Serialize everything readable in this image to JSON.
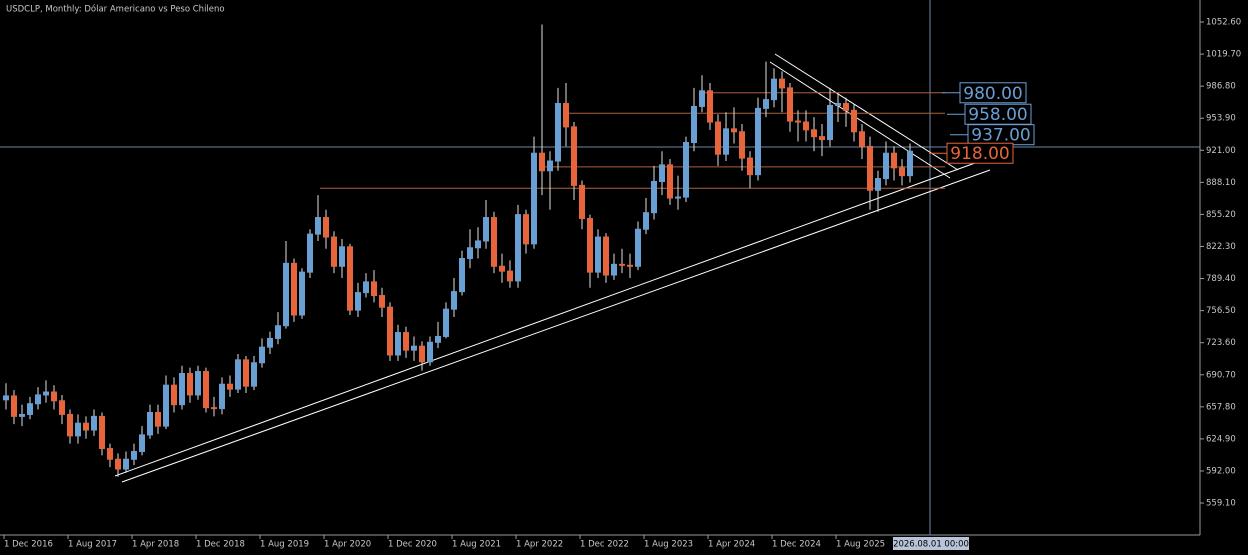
{
  "chart_data": {
    "type": "candlestick",
    "title": "USDCLP, Monthly:  Dólar Americano vs Peso Chileno",
    "categories": [
      "1 Dec 2016",
      null,
      null,
      null,
      null,
      null,
      null,
      null,
      "1 Aug 2017",
      null,
      null,
      null,
      null,
      null,
      null,
      null,
      "1 Apr 2018",
      null,
      null,
      null,
      null,
      null,
      null,
      null,
      "1 Dec 2018",
      null,
      null,
      null,
      null,
      null,
      null,
      null,
      "1 Aug 2019",
      null,
      null,
      null,
      null,
      null,
      null,
      null,
      "1 Apr 2020",
      null,
      null,
      null,
      null,
      null,
      null,
      null,
      "1 Dec 2020",
      null,
      null,
      null,
      null,
      null,
      null,
      null,
      "1 Aug 2021",
      null,
      null,
      null,
      null,
      null,
      null,
      null,
      "1 Apr 2022",
      null,
      null,
      null,
      null,
      null,
      null,
      null,
      "1 Dec 2022",
      null,
      null,
      null,
      null,
      null,
      null,
      null,
      "1 Aug 2023",
      null,
      null,
      null,
      null,
      null,
      null,
      null,
      "1 Apr 2024",
      null,
      null,
      null,
      null,
      null,
      null,
      null,
      "1 Dec 2024",
      null,
      null,
      null,
      null,
      null,
      null,
      null,
      "1 Aug 2025",
      null,
      null,
      null,
      null,
      null,
      null,
      null,
      null,
      null
    ],
    "open": [
      665,
      669,
      648,
      650,
      661,
      670,
      673,
      664,
      650,
      628,
      641,
      634,
      648,
      615,
      604,
      594,
      604,
      612,
      629,
      652,
      638,
      680,
      660,
      692,
      670,
      694,
      657,
      656,
      681,
      676,
      706,
      679,
      703,
      719,
      728,
      741,
      805,
      752,
      796,
      835,
      852,
      832,
      802,
      822,
      757,
      775,
      786,
      772,
      760,
      711,
      734,
      716,
      720,
      704,
      724,
      730,
      758,
      776,
      810,
      821,
      828,
      852,
      802,
      797,
      787,
      855,
      825,
      918,
      900,
      910,
      969,
      945,
      885,
      851,
      796,
      832,
      793,
      804,
      803,
      802,
      840,
      857,
      889,
      906,
      872,
      873,
      929,
      966,
      982,
      950,
      917,
      943,
      940,
      913,
      896,
      964,
      973,
      994,
      985,
      951,
      950,
      942,
      935,
      932,
      967,
      969,
      962,
      940,
      925,
      880,
      892,
      918,
      903,
      895
    ],
    "high": [
      682,
      675,
      660,
      668,
      678,
      685,
      680,
      670,
      655,
      650,
      648,
      655,
      652,
      620,
      610,
      612,
      620,
      638,
      660,
      660,
      690,
      688,
      700,
      698,
      700,
      698,
      668,
      688,
      690,
      712,
      710,
      710,
      728,
      735,
      755,
      828,
      810,
      800,
      840,
      875,
      860,
      838,
      830,
      825,
      785,
      795,
      798,
      780,
      765,
      742,
      740,
      730,
      725,
      730,
      745,
      765,
      790,
      818,
      840,
      842,
      870,
      858,
      815,
      808,
      865,
      860,
      935,
      1050,
      920,
      985,
      990,
      950,
      890,
      855,
      840,
      836,
      815,
      820,
      815,
      848,
      872,
      905,
      920,
      912,
      895,
      935,
      985,
      998,
      990,
      958,
      960,
      965,
      948,
      920,
      975,
      1012,
      1005,
      1002,
      990,
      962,
      962,
      955,
      948,
      985,
      980,
      975,
      968,
      948,
      935,
      900,
      930,
      925,
      912,
      928
    ],
    "low": [
      655,
      640,
      638,
      645,
      655,
      662,
      655,
      640,
      620,
      620,
      625,
      628,
      608,
      596,
      586,
      590,
      598,
      608,
      625,
      630,
      635,
      652,
      655,
      662,
      665,
      652,
      648,
      650,
      668,
      672,
      672,
      675,
      698,
      712,
      722,
      738,
      745,
      748,
      790,
      828,
      820,
      795,
      790,
      752,
      750,
      770,
      765,
      750,
      705,
      705,
      708,
      705,
      695,
      700,
      718,
      728,
      750,
      772,
      800,
      810,
      820,
      795,
      785,
      780,
      780,
      815,
      820,
      875,
      860,
      900,
      925,
      870,
      840,
      780,
      790,
      785,
      788,
      795,
      790,
      798,
      835,
      850,
      875,
      865,
      860,
      868,
      920,
      960,
      942,
      905,
      910,
      928,
      900,
      882,
      890,
      955,
      965,
      960,
      940,
      930,
      930,
      920,
      915,
      925,
      950,
      945,
      930,
      912,
      860,
      858,
      885,
      890,
      885,
      888
    ],
    "close": [
      669,
      648,
      650,
      661,
      670,
      673,
      664,
      650,
      628,
      641,
      634,
      648,
      615,
      604,
      594,
      604,
      612,
      629,
      652,
      638,
      680,
      660,
      692,
      670,
      694,
      657,
      656,
      681,
      676,
      706,
      679,
      703,
      719,
      728,
      741,
      805,
      752,
      796,
      835,
      852,
      832,
      802,
      822,
      757,
      775,
      786,
      772,
      760,
      711,
      734,
      716,
      720,
      704,
      724,
      730,
      758,
      776,
      810,
      821,
      828,
      852,
      802,
      797,
      787,
      855,
      825,
      918,
      900,
      910,
      969,
      945,
      885,
      851,
      796,
      832,
      793,
      804,
      803,
      802,
      840,
      857,
      889,
      906,
      872,
      873,
      929,
      966,
      982,
      950,
      917,
      943,
      940,
      913,
      896,
      964,
      973,
      994,
      985,
      951,
      950,
      942,
      935,
      932,
      967,
      969,
      962,
      940,
      925,
      880,
      892,
      918,
      903,
      895,
      920
    ],
    "up_color": "#6a9fd4",
    "down_color": "#e8643a",
    "ylim": [
      526.3,
      1075.2
    ],
    "yticks": [
      {
        "value": 1052.6,
        "label": "1052.60"
      },
      {
        "value": 1019.7,
        "label": "1019.70"
      },
      {
        "value": 986.8,
        "label": "986.80"
      },
      {
        "value": 953.9,
        "label": "953.90"
      },
      {
        "value": 921,
        "label": "921.00"
      },
      {
        "value": 888.1,
        "label": "888.10"
      },
      {
        "value": 855.2,
        "label": "855.20"
      },
      {
        "value": 822.3,
        "label": "822.30"
      },
      {
        "value": 789.4,
        "label": "789.40"
      },
      {
        "value": 756.5,
        "label": "756.50"
      },
      {
        "value": 723.6,
        "label": "723.60"
      },
      {
        "value": 690.7,
        "label": "690.70"
      },
      {
        "value": 657.8,
        "label": "657.80"
      },
      {
        "value": 624.9,
        "label": "624.90"
      },
      {
        "value": 592,
        "label": "592.00"
      },
      {
        "value": 559.1,
        "label": "559.10"
      }
    ],
    "levels": [
      {
        "value": 980,
        "label": "980.00",
        "color": "#6a9fd4"
      },
      {
        "value": 958,
        "label": "958.00",
        "color": "#6a9fd4"
      },
      {
        "value": 937,
        "label": "937.00",
        "color": "#6a9fd4"
      },
      {
        "value": 918,
        "label": "918.00",
        "color": "#e8643a"
      }
    ],
    "horizontal_lines": [
      980,
      959,
      904,
      882
    ],
    "crosshair_label": "2026.08.01 00:00"
  }
}
